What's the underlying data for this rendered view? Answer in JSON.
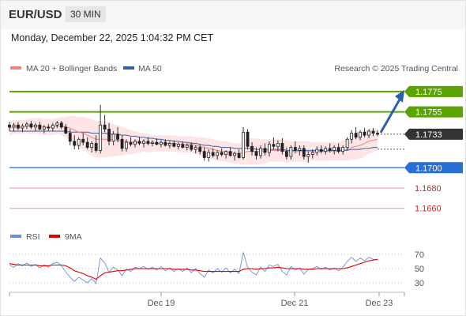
{
  "header": {
    "pair": "EUR/USD",
    "timeframe": "30 MIN"
  },
  "datetime": "Monday, December 22, 2025 1:04:32 PM CET",
  "legend": {
    "ma20": "MA 20 + Bollinger Bands",
    "ma50": "MA 50",
    "credit": "Research © 2025 Trading Central",
    "rsi": "RSI",
    "rsi_ma": "9MA"
  },
  "colors": {
    "ma20": "#f08080",
    "ma50": "#3a5fa8",
    "bollinger": "#fde0e0",
    "resistance": "#5aa300",
    "support": "#2a6fd6",
    "target_arrow": "#2b5fb0",
    "weak_support": "#e66",
    "current_price": "#333333",
    "rsi": "#6a8fd8",
    "rsi_ma": "#e00000"
  },
  "chart_data": [
    {
      "type": "candlestick",
      "ylim": [
        1.1652,
        1.1785
      ],
      "x_ticks": [
        "Dec 19",
        "Dec 21",
        "Dec 23"
      ],
      "levels": [
        {
          "label": "1.1775",
          "value": 1.1775,
          "kind": "resistance"
        },
        {
          "label": "1.1755",
          "value": 1.1755,
          "kind": "resistance"
        },
        {
          "label": "1.1733",
          "value": 1.1733,
          "kind": "current"
        },
        {
          "label": "1.1700",
          "value": 1.17,
          "kind": "support"
        },
        {
          "label": "1.1680",
          "value": 1.168,
          "kind": "weak"
        },
        {
          "label": "1.1660",
          "value": 1.166,
          "kind": "weak"
        }
      ],
      "target": {
        "from": 1.1733,
        "to": 1.1775
      },
      "candles": [
        [
          1.1742,
          1.1745,
          1.1736,
          1.174
        ],
        [
          1.174,
          1.1744,
          1.1736,
          1.1742
        ],
        [
          1.1742,
          1.1745,
          1.1737,
          1.1739
        ],
        [
          1.1739,
          1.1743,
          1.1735,
          1.1741
        ],
        [
          1.1741,
          1.1745,
          1.1738,
          1.1743
        ],
        [
          1.1743,
          1.1746,
          1.1738,
          1.174
        ],
        [
          1.174,
          1.1744,
          1.1736,
          1.1742
        ],
        [
          1.1742,
          1.1745,
          1.1737,
          1.1738
        ],
        [
          1.1738,
          1.1742,
          1.1734,
          1.174
        ],
        [
          1.174,
          1.1743,
          1.1736,
          1.1739
        ],
        [
          1.1739,
          1.1744,
          1.1736,
          1.1742
        ],
        [
          1.1742,
          1.1746,
          1.1739,
          1.1744
        ],
        [
          1.1744,
          1.1746,
          1.1738,
          1.174
        ],
        [
          1.174,
          1.1743,
          1.1733,
          1.1734
        ],
        [
          1.1734,
          1.1738,
          1.1722,
          1.1726
        ],
        [
          1.1726,
          1.1732,
          1.1718,
          1.1722
        ],
        [
          1.1722,
          1.173,
          1.1718,
          1.1728
        ],
        [
          1.1728,
          1.1734,
          1.1722,
          1.1725
        ],
        [
          1.1725,
          1.173,
          1.1718,
          1.172
        ],
        [
          1.172,
          1.1726,
          1.1715,
          1.1724
        ],
        [
          1.1724,
          1.1732,
          1.1715,
          1.1717
        ],
        [
          1.1717,
          1.1762,
          1.1714,
          1.1742
        ],
        [
          1.1742,
          1.1752,
          1.1735,
          1.1738
        ],
        [
          1.1738,
          1.1744,
          1.1722,
          1.1726
        ],
        [
          1.1726,
          1.1736,
          1.1722,
          1.1733
        ],
        [
          1.1733,
          1.174,
          1.1725,
          1.1728
        ],
        [
          1.1728,
          1.1732,
          1.1716,
          1.1719
        ],
        [
          1.1719,
          1.1728,
          1.1716,
          1.1725
        ],
        [
          1.1725,
          1.173,
          1.1721,
          1.1723
        ],
        [
          1.1723,
          1.1728,
          1.172,
          1.1726
        ],
        [
          1.1726,
          1.173,
          1.1722,
          1.1724
        ],
        [
          1.1724,
          1.1728,
          1.172,
          1.1726
        ],
        [
          1.1726,
          1.173,
          1.1722,
          1.1724
        ],
        [
          1.1724,
          1.1727,
          1.1721,
          1.1725
        ],
        [
          1.1725,
          1.1729,
          1.1722,
          1.1723
        ],
        [
          1.1723,
          1.1727,
          1.172,
          1.1725
        ],
        [
          1.1725,
          1.1728,
          1.1721,
          1.1722
        ],
        [
          1.1722,
          1.1726,
          1.1719,
          1.1724
        ],
        [
          1.1724,
          1.1727,
          1.172,
          1.1721
        ],
        [
          1.1721,
          1.1725,
          1.1718,
          1.1723
        ],
        [
          1.1723,
          1.1726,
          1.1719,
          1.172
        ],
        [
          1.172,
          1.1724,
          1.1717,
          1.1722
        ],
        [
          1.1722,
          1.1725,
          1.1716,
          1.1718
        ],
        [
          1.1718,
          1.1722,
          1.1714,
          1.172
        ],
        [
          1.172,
          1.1723,
          1.1713,
          1.1716
        ],
        [
          1.1716,
          1.172,
          1.1707,
          1.171
        ],
        [
          1.171,
          1.1718,
          1.1706,
          1.1715
        ],
        [
          1.1715,
          1.1719,
          1.171,
          1.1712
        ],
        [
          1.1712,
          1.1717,
          1.1708,
          1.1715
        ],
        [
          1.1715,
          1.1719,
          1.1711,
          1.1713
        ],
        [
          1.1713,
          1.1717,
          1.1709,
          1.1716
        ],
        [
          1.1716,
          1.172,
          1.1711,
          1.1712
        ],
        [
          1.1712,
          1.1716,
          1.1707,
          1.1714
        ],
        [
          1.1714,
          1.1718,
          1.1709,
          1.171
        ],
        [
          1.171,
          1.174,
          1.1708,
          1.1735
        ],
        [
          1.1735,
          1.1738,
          1.1718,
          1.1721
        ],
        [
          1.1721,
          1.1725,
          1.1712,
          1.1716
        ],
        [
          1.1716,
          1.172,
          1.1708,
          1.1712
        ],
        [
          1.1712,
          1.1722,
          1.1709,
          1.1719
        ],
        [
          1.1719,
          1.1724,
          1.1712,
          1.1715
        ],
        [
          1.1715,
          1.1726,
          1.1711,
          1.1723
        ],
        [
          1.1723,
          1.173,
          1.1718,
          1.1721
        ],
        [
          1.1721,
          1.1727,
          1.1716,
          1.1724
        ],
        [
          1.1724,
          1.1729,
          1.1713,
          1.1716
        ],
        [
          1.1716,
          1.172,
          1.1708,
          1.1711
        ],
        [
          1.1711,
          1.1722,
          1.1708,
          1.172
        ],
        [
          1.172,
          1.1726,
          1.1714,
          1.1717
        ],
        [
          1.1717,
          1.1722,
          1.1712,
          1.1719
        ],
        [
          1.1719,
          1.1722,
          1.1708,
          1.1711
        ],
        [
          1.1711,
          1.1716,
          1.1705,
          1.1713
        ],
        [
          1.1713,
          1.1718,
          1.1709,
          1.1715
        ],
        [
          1.1715,
          1.1721,
          1.1712,
          1.1718
        ],
        [
          1.1718,
          1.1722,
          1.1714,
          1.1716
        ],
        [
          1.1716,
          1.1721,
          1.1713,
          1.1719
        ],
        [
          1.1719,
          1.1724,
          1.1715,
          1.1717
        ],
        [
          1.1717,
          1.1722,
          1.1713,
          1.172
        ],
        [
          1.172,
          1.1724,
          1.1714,
          1.1716
        ],
        [
          1.1716,
          1.1722,
          1.1713,
          1.172
        ],
        [
          1.172,
          1.173,
          1.1717,
          1.1728
        ],
        [
          1.1728,
          1.1737,
          1.1724,
          1.1734
        ],
        [
          1.1734,
          1.174,
          1.1728,
          1.173
        ],
        [
          1.173,
          1.1737,
          1.1727,
          1.1735
        ],
        [
          1.1735,
          1.1739,
          1.173,
          1.1732
        ],
        [
          1.1732,
          1.1738,
          1.1729,
          1.1736
        ],
        [
          1.1736,
          1.1739,
          1.1731,
          1.1734
        ],
        [
          1.1734,
          1.1737,
          1.1731,
          1.1733
        ]
      ],
      "ma20": [
        1.1739,
        1.174,
        1.174,
        1.174,
        1.1741,
        1.1741,
        1.1741,
        1.1741,
        1.174,
        1.174,
        1.174,
        1.1741,
        1.1741,
        1.174,
        1.1739,
        1.1737,
        1.1735,
        1.1734,
        1.1732,
        1.173,
        1.1728,
        1.1728,
        1.1728,
        1.1728,
        1.1727,
        1.1727,
        1.1726,
        1.1726,
        1.1725,
        1.1725,
        1.1725,
        1.1725,
        1.1724,
        1.1724,
        1.1724,
        1.1724,
        1.1724,
        1.1724,
        1.1724,
        1.1723,
        1.1723,
        1.1723,
        1.1723,
        1.1722,
        1.1721,
        1.172,
        1.1719,
        1.1718,
        1.1717,
        1.1716,
        1.1716,
        1.1715,
        1.1714,
        1.1714,
        1.1715,
        1.1716,
        1.1716,
        1.1716,
        1.1716,
        1.1716,
        1.1717,
        1.1717,
        1.1717,
        1.1717,
        1.1716,
        1.1716,
        1.1716,
        1.1716,
        1.1716,
        1.1716,
        1.1716,
        1.1716,
        1.1716,
        1.1716,
        1.1716,
        1.1716,
        1.1716,
        1.1717,
        1.1718,
        1.172,
        1.1721,
        1.1722,
        1.1724,
        1.1726,
        1.1727,
        1.1728
      ],
      "ma50": [
        1.1736,
        1.1736,
        1.1736,
        1.1736,
        1.1736,
        1.1736,
        1.1736,
        1.1736,
        1.1736,
        1.1736,
        1.1736,
        1.1736,
        1.1736,
        1.1736,
        1.1735,
        1.1735,
        1.1735,
        1.1735,
        1.1735,
        1.1734,
        1.1734,
        1.1734,
        1.1734,
        1.1733,
        1.1733,
        1.1733,
        1.1732,
        1.1732,
        1.1731,
        1.1731,
        1.173,
        1.173,
        1.1729,
        1.1729,
        1.1728,
        1.1728,
        1.1727,
        1.1727,
        1.1726,
        1.1726,
        1.1725,
        1.1725,
        1.1724,
        1.1724,
        1.1723,
        1.1722,
        1.1722,
        1.1721,
        1.1721,
        1.172,
        1.172,
        1.172,
        1.1719,
        1.1719,
        1.1719,
        1.1719,
        1.1719,
        1.1718,
        1.1718,
        1.1718,
        1.1718,
        1.1718,
        1.1718,
        1.1718,
        1.1717,
        1.1717,
        1.1717,
        1.1717,
        1.1717,
        1.1717,
        1.1717,
        1.1717,
        1.1717,
        1.1717,
        1.1717,
        1.1717,
        1.1717,
        1.1717,
        1.1717,
        1.1718,
        1.1718,
        1.1718,
        1.1719,
        1.1719,
        1.172,
        1.172
      ],
      "bollinger_width": [
        0.0007,
        0.0007,
        0.0007,
        0.0007,
        0.0007,
        0.0008,
        0.0008,
        0.0008,
        0.0008,
        0.0008,
        0.0008,
        0.0008,
        0.0009,
        0.001,
        0.0012,
        0.0014,
        0.0015,
        0.0016,
        0.0017,
        0.0018,
        0.0018,
        0.0018,
        0.0018,
        0.0017,
        0.0016,
        0.0015,
        0.0014,
        0.0013,
        0.0012,
        0.0011,
        0.001,
        0.0009,
        0.0009,
        0.0008,
        0.0008,
        0.0008,
        0.0008,
        0.0008,
        0.0008,
        0.0008,
        0.0008,
        0.0008,
        0.0008,
        0.0008,
        0.0009,
        0.001,
        0.001,
        0.001,
        0.001,
        0.001,
        0.001,
        0.001,
        0.001,
        0.001,
        0.0012,
        0.0013,
        0.0013,
        0.0013,
        0.0012,
        0.0012,
        0.0011,
        0.0011,
        0.0011,
        0.0011,
        0.0011,
        0.001,
        0.001,
        0.001,
        0.001,
        0.001,
        0.0009,
        0.0009,
        0.0009,
        0.0009,
        0.0009,
        0.0009,
        0.0009,
        0.001,
        0.0011,
        0.0012,
        0.0013,
        0.0013,
        0.0013,
        0.0012,
        0.0012,
        0.0011
      ]
    },
    {
      "type": "line",
      "y_ticks": [
        "70",
        "50",
        "30"
      ],
      "ylim": [
        20,
        80
      ],
      "series": [
        {
          "name": "RSI",
          "values": [
            55,
            52,
            57,
            54,
            58,
            53,
            56,
            51,
            55,
            52,
            57,
            59,
            54,
            45,
            38,
            32,
            38,
            34,
            30,
            36,
            29,
            65,
            58,
            45,
            52,
            48,
            40,
            49,
            46,
            52,
            50,
            53,
            49,
            52,
            48,
            53,
            47,
            51,
            46,
            50,
            46,
            51,
            44,
            50,
            43,
            38,
            48,
            44,
            50,
            45,
            51,
            44,
            49,
            43,
            73,
            52,
            45,
            41,
            52,
            46,
            55,
            53,
            56,
            46,
            41,
            53,
            48,
            51,
            42,
            49,
            50,
            53,
            49,
            52,
            48,
            51,
            47,
            52,
            60,
            66,
            60,
            65,
            61,
            66,
            63,
            62
          ]
        },
        {
          "name": "9MA",
          "values": [
            57,
            56,
            55,
            55,
            55,
            55,
            55,
            54,
            54,
            54,
            55,
            55,
            55,
            54,
            51,
            47,
            45,
            43,
            40,
            38,
            35,
            40,
            44,
            45,
            46,
            47,
            47,
            48,
            49,
            50,
            50,
            50,
            50,
            50,
            50,
            50,
            50,
            50,
            49,
            49,
            49,
            49,
            48,
            48,
            47,
            46,
            46,
            46,
            46,
            46,
            46,
            46,
            46,
            46,
            49,
            50,
            50,
            49,
            50,
            50,
            51,
            51,
            52,
            51,
            50,
            50,
            50,
            50,
            49,
            49,
            49,
            50,
            50,
            50,
            50,
            50,
            50,
            50,
            51,
            53,
            55,
            57,
            59,
            61,
            62,
            63
          ]
        }
      ]
    }
  ]
}
